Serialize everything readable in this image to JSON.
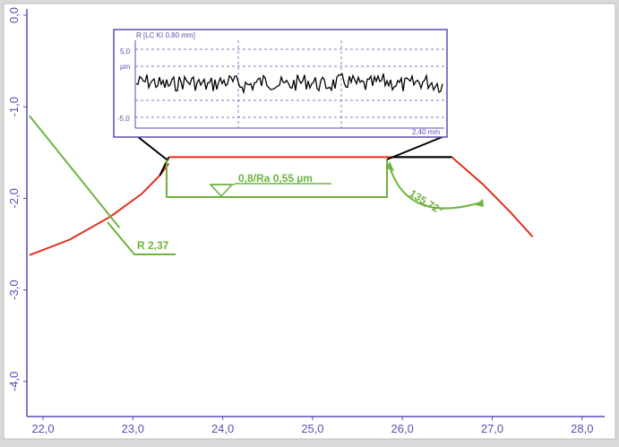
{
  "chart_data": {
    "type": "line",
    "x_ticks": [
      "22,0",
      "23,0",
      "24,0",
      "25,0",
      "26,0",
      "27,0",
      "28,0"
    ],
    "y_ticks": [
      "0,0",
      "-1,0",
      "-2,0",
      "-3,0",
      "-4,0"
    ],
    "xlim": [
      22.0,
      28.0
    ],
    "ylim": [
      -4.6,
      0.05
    ],
    "grid": false,
    "series": [
      {
        "role": "profile-left-flank",
        "x": [
          21.85,
          22.3,
          22.75,
          23.1,
          23.3,
          23.4
        ],
        "y": [
          -2.62,
          -2.45,
          -2.2,
          -1.95,
          -1.75,
          -1.62
        ]
      },
      {
        "role": "profile-top",
        "x": [
          23.4,
          25.9
        ],
        "y": [
          -1.55,
          -1.55
        ]
      },
      {
        "role": "profile-right-top",
        "x": [
          25.9,
          26.55
        ],
        "y": [
          -1.55,
          -1.55
        ]
      },
      {
        "role": "profile-right-flank",
        "x": [
          26.55,
          26.9,
          27.2,
          27.45
        ],
        "y": [
          -1.55,
          -1.85,
          -2.15,
          -2.42
        ]
      },
      {
        "role": "radius-line",
        "x": [
          21.85,
          22.85
        ],
        "y": [
          -1.1,
          -2.32
        ]
      }
    ],
    "annotations": {
      "radius": "R 2,37",
      "roughness": "0,8/Ra 0,55 µm",
      "angle": "135,72°"
    },
    "inset": {
      "title": "R [LC KI 0,80 mm]",
      "y_top_label": "5,0",
      "y_unit": "µm",
      "y_bottom_label": "-5,0",
      "x_length_label": "2,40 mm",
      "ylim": [
        -5.0,
        5.0
      ]
    }
  },
  "colors": {
    "axis": "#5a4fb0",
    "profile_black": "#000000",
    "profile_red": "#e0301e",
    "annotation_green": "#6db33f",
    "background": "#ffffff"
  }
}
